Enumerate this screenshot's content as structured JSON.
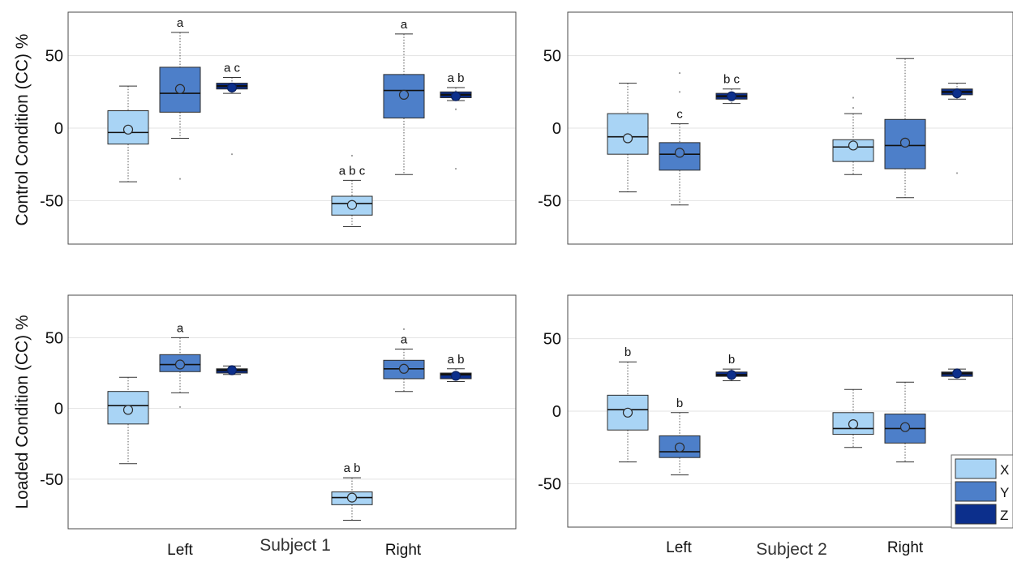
{
  "y_axis_labels": {
    "top": "Control Condition (CC) %",
    "bottom": "Loaded Condition (CC) %"
  },
  "x_group_labels": {
    "subject1": {
      "left": "Left",
      "center": "Subject 1",
      "right": "Right"
    },
    "subject2": {
      "left": "Left",
      "center": "Subject 2",
      "right": "Right"
    }
  },
  "legend": {
    "placement": "bottom-right of lower-right panel",
    "entries": [
      {
        "name": "X",
        "color": "#a9d4f5"
      },
      {
        "name": "Y",
        "color": "#4d7fc9"
      },
      {
        "name": "Z",
        "color": "#0c2f8c"
      }
    ]
  },
  "chart_data": [
    {
      "type": "boxplot",
      "panel": "control-subject1",
      "ylim": [
        -80,
        80
      ],
      "yticks": [
        -50,
        0,
        50
      ],
      "grid": true,
      "groups": [
        "Left",
        "Right"
      ],
      "boxes": [
        {
          "group": "Left",
          "series": "X",
          "whisker_low": -37,
          "q1": -11,
          "median": -3,
          "q3": 12,
          "whisker_high": 29,
          "mean": -1,
          "outliers": [],
          "sig": ""
        },
        {
          "group": "Left",
          "series": "Y",
          "whisker_low": -7,
          "q1": 11,
          "median": 24,
          "q3": 42,
          "whisker_high": 66,
          "mean": 27,
          "outliers": [
            -35
          ],
          "sig": "a"
        },
        {
          "group": "Left",
          "series": "Z",
          "whisker_low": 24,
          "q1": 27,
          "median": 29,
          "q3": 31,
          "whisker_high": 35,
          "mean": 28,
          "outliers": [
            -18
          ],
          "sig": "a c"
        },
        {
          "group": "Right",
          "series": "X",
          "whisker_low": -68,
          "q1": -60,
          "median": -52,
          "q3": -47,
          "whisker_high": -36,
          "mean": -53,
          "outliers": [
            -19
          ],
          "sig": "a b c"
        },
        {
          "group": "Right",
          "series": "Y",
          "whisker_low": -32,
          "q1": 7,
          "median": 26,
          "q3": 37,
          "whisker_high": 65,
          "mean": 23,
          "outliers": [],
          "sig": "a"
        },
        {
          "group": "Right",
          "series": "Z",
          "whisker_low": 19,
          "q1": 21,
          "median": 23,
          "q3": 25,
          "whisker_high": 28,
          "mean": 22,
          "outliers": [
            13,
            -28
          ],
          "sig": "a b"
        }
      ]
    },
    {
      "type": "boxplot",
      "panel": "control-subject2",
      "ylim": [
        -80,
        80
      ],
      "yticks": [
        -50,
        0,
        50
      ],
      "grid": true,
      "groups": [
        "Left",
        "Right"
      ],
      "boxes": [
        {
          "group": "Left",
          "series": "X",
          "whisker_low": -44,
          "q1": -18,
          "median": -6,
          "q3": 10,
          "whisker_high": 31,
          "mean": -7,
          "outliers": [],
          "sig": ""
        },
        {
          "group": "Left",
          "series": "Y",
          "whisker_low": -53,
          "q1": -29,
          "median": -18,
          "q3": -10,
          "whisker_high": 3,
          "mean": -17,
          "outliers": [
            25,
            38
          ],
          "sig": "c"
        },
        {
          "group": "Left",
          "series": "Z",
          "whisker_low": 17,
          "q1": 20,
          "median": 22,
          "q3": 24,
          "whisker_high": 27,
          "mean": 22,
          "outliers": [],
          "sig": "b c"
        },
        {
          "group": "Right",
          "series": "X",
          "whisker_low": -32,
          "q1": -23,
          "median": -13,
          "q3": -8,
          "whisker_high": 10,
          "mean": -12,
          "outliers": [
            14,
            21
          ],
          "sig": ""
        },
        {
          "group": "Right",
          "series": "Y",
          "whisker_low": -48,
          "q1": -28,
          "median": -12,
          "q3": 6,
          "whisker_high": 48,
          "mean": -10,
          "outliers": [],
          "sig": ""
        },
        {
          "group": "Right",
          "series": "Z",
          "whisker_low": 20,
          "q1": 23,
          "median": 25,
          "q3": 27,
          "whisker_high": 31,
          "mean": 24,
          "outliers": [
            -31
          ],
          "sig": ""
        }
      ]
    },
    {
      "type": "boxplot",
      "panel": "loaded-subject1",
      "ylim": [
        -85,
        80
      ],
      "yticks": [
        -50,
        0,
        50
      ],
      "grid": true,
      "groups": [
        "Left",
        "Right"
      ],
      "boxes": [
        {
          "group": "Left",
          "series": "X",
          "whisker_low": -39,
          "q1": -11,
          "median": 2,
          "q3": 12,
          "whisker_high": 22,
          "mean": -1,
          "outliers": [],
          "sig": ""
        },
        {
          "group": "Left",
          "series": "Y",
          "whisker_low": 11,
          "q1": 26,
          "median": 31,
          "q3": 38,
          "whisker_high": 50,
          "mean": 31,
          "outliers": [
            1,
            56
          ],
          "sig": "a"
        },
        {
          "group": "Left",
          "series": "Z",
          "whisker_low": 24,
          "q1": 25,
          "median": 27,
          "q3": 28,
          "whisker_high": 30,
          "mean": 27,
          "outliers": [],
          "sig": ""
        },
        {
          "group": "Right",
          "series": "X",
          "whisker_low": -79,
          "q1": -68,
          "median": -63,
          "q3": -59,
          "whisker_high": -49,
          "mean": -63,
          "outliers": [],
          "sig": "a b"
        },
        {
          "group": "Right",
          "series": "Y",
          "whisker_low": 12,
          "q1": 21,
          "median": 28,
          "q3": 34,
          "whisker_high": 42,
          "mean": 28,
          "outliers": [
            56
          ],
          "sig": "a"
        },
        {
          "group": "Right",
          "series": "Z",
          "whisker_low": 19,
          "q1": 21,
          "median": 24,
          "q3": 25,
          "whisker_high": 28,
          "mean": 23,
          "outliers": [],
          "sig": "a b"
        }
      ]
    },
    {
      "type": "boxplot",
      "panel": "loaded-subject2",
      "ylim": [
        -80,
        80
      ],
      "yticks": [
        -50,
        0,
        50
      ],
      "grid": true,
      "groups": [
        "Left",
        "Right"
      ],
      "boxes": [
        {
          "group": "Left",
          "series": "X",
          "whisker_low": -35,
          "q1": -13,
          "median": 1,
          "q3": 11,
          "whisker_high": 34,
          "mean": -1,
          "outliers": [],
          "sig": "b"
        },
        {
          "group": "Left",
          "series": "Y",
          "whisker_low": -44,
          "q1": -32,
          "median": -28,
          "q3": -17,
          "whisker_high": -1,
          "mean": -25,
          "outliers": [],
          "sig": "b"
        },
        {
          "group": "Left",
          "series": "Z",
          "whisker_low": 21,
          "q1": 24,
          "median": 25,
          "q3": 27,
          "whisker_high": 29,
          "mean": 25,
          "outliers": [],
          "sig": "b"
        },
        {
          "group": "Right",
          "series": "X",
          "whisker_low": -25,
          "q1": -16,
          "median": -12,
          "q3": -1,
          "whisker_high": 15,
          "mean": -9,
          "outliers": [],
          "sig": ""
        },
        {
          "group": "Right",
          "series": "Y",
          "whisker_low": -35,
          "q1": -22,
          "median": -12,
          "q3": -2,
          "whisker_high": 20,
          "mean": -11,
          "outliers": [],
          "sig": ""
        },
        {
          "group": "Right",
          "series": "Z",
          "whisker_low": 22,
          "q1": 24,
          "median": 26,
          "q3": 27,
          "whisker_high": 29,
          "mean": 26,
          "outliers": [],
          "sig": ""
        }
      ]
    }
  ]
}
